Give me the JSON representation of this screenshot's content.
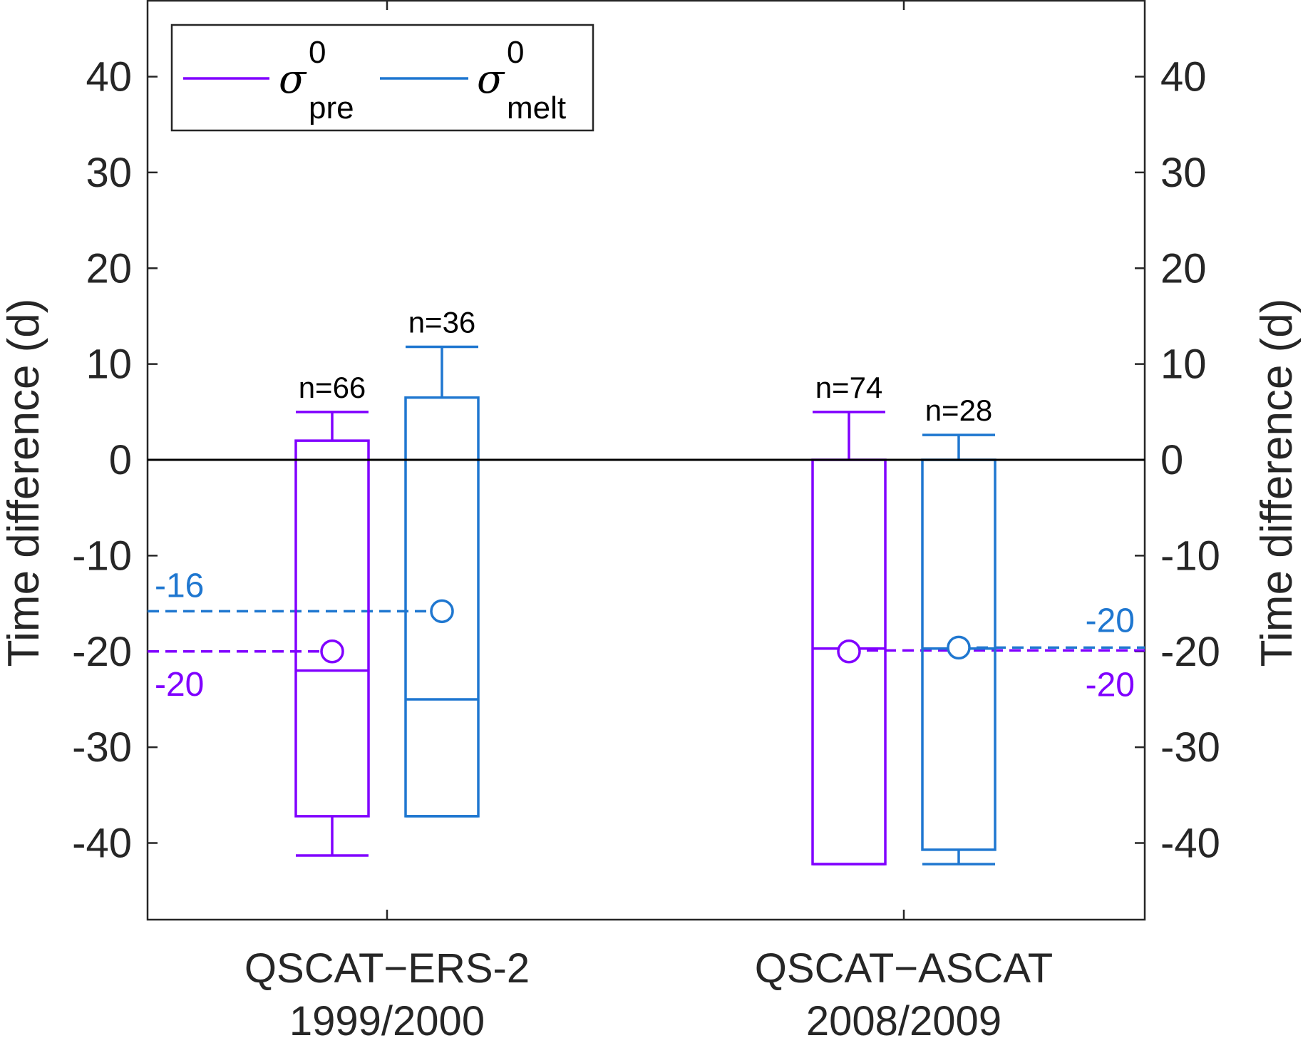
{
  "chart_data": {
    "type": "box",
    "ylabel_left": "Time difference (d)",
    "ylabel_right": "Time difference (d)",
    "ylim": [
      -48,
      48
    ],
    "yticks": [
      -40,
      -30,
      -20,
      -10,
      0,
      10,
      20,
      30,
      40
    ],
    "yticklabels": [
      "-40",
      "-30",
      "-20",
      "-10",
      "0",
      "10",
      "20",
      "30",
      "40"
    ],
    "grid": false,
    "legend_position": "top-left",
    "categories": [
      {
        "line1": "QSCAT−ERS-2",
        "line2": "1999/2000"
      },
      {
        "line1": "QSCAT−ASCAT",
        "line2": "2008/2009"
      }
    ],
    "series": [
      {
        "key": "pre",
        "symbol": "σ",
        "superscript": "0",
        "subscript": "pre",
        "color": "#8000ff",
        "boxes": [
          {
            "category": 0,
            "whisker_low": -41.3,
            "q1": -37.2,
            "median": -22.0,
            "q3": 2.0,
            "whisker_high": 5.0,
            "mean": -20.0,
            "n_label": "n=66"
          },
          {
            "category": 1,
            "whisker_low": -42.2,
            "q1": -42.2,
            "median": -19.7,
            "q3": 0.0,
            "whisker_high": 5.0,
            "mean": -20.0,
            "n_label": "n=74"
          }
        ]
      },
      {
        "key": "melt",
        "symbol": "σ",
        "superscript": "0",
        "subscript": "melt",
        "color": "#1f77d0",
        "boxes": [
          {
            "category": 0,
            "whisker_low": -37.2,
            "q1": -37.2,
            "median": -25.0,
            "q3": 6.5,
            "whisker_high": 11.8,
            "mean": -15.8,
            "n_label": "n=36"
          },
          {
            "category": 1,
            "whisker_low": -42.2,
            "q1": -40.7,
            "median": -19.7,
            "q3": 0.0,
            "whisker_high": 2.6,
            "mean": -19.6,
            "n_label": "n=28"
          }
        ]
      }
    ],
    "reference_lines": [
      {
        "series": "melt",
        "value": -15.8,
        "label": "-16",
        "side": "left"
      },
      {
        "series": "pre",
        "value": -20.0,
        "label": "-20",
        "side": "left"
      },
      {
        "series": "melt",
        "value": -19.6,
        "label": "-20",
        "side": "right"
      },
      {
        "series": "pre",
        "value": -19.9,
        "label": "-20",
        "side": "right"
      }
    ],
    "zero_line": 0
  }
}
